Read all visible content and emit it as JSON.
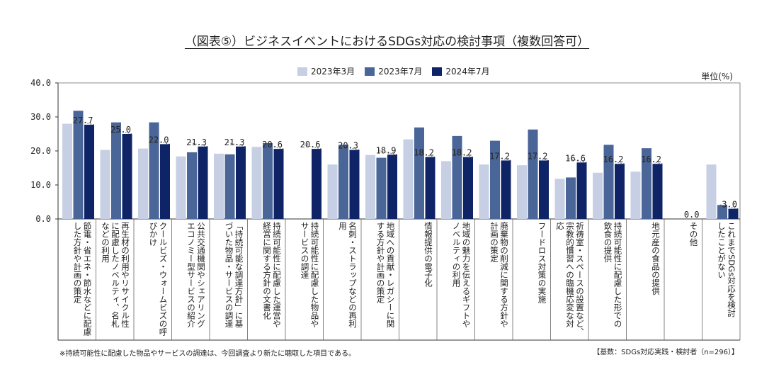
{
  "header": {
    "title": "（図表⑤）ビジネスイベントにおけるSDGs対応の検討事項（複数回答可）",
    "unit": "単位(%)"
  },
  "colors": {
    "s2023_3": "#c7cfe4",
    "s2023_7": "#4a6597",
    "s2024_7": "#0f2467"
  },
  "chart_data": {
    "type": "bar",
    "title": "（図表⑤）ビジネスイベントにおけるSDGs対応の検討事項（複数回答可）",
    "ylabel": "単位(%)",
    "ylim": [
      0,
      40
    ],
    "yticks": [
      "0.0",
      "10.0",
      "20.0",
      "30.0",
      "40.0"
    ],
    "grid": false,
    "legend": "top-center",
    "categories": [
      [
        "節電・省エネ・節水などに配慮",
        "した方針や計画の策定"
      ],
      [
        "再生材の利用やリサイクル性",
        "に配慮したノベルティ、名札",
        "などの利用"
      ],
      [
        "クールビズ・ウォームビズの呼",
        "びかけ"
      ],
      [
        "公共交通機関やシェアリング",
        "エコノミー型サービスの紹介"
      ],
      [
        "「持続可能な調達方針」に基",
        "づいた物品・サービスの調達"
      ],
      [
        "持続可能性に配慮した運営や",
        "経営に関する方針の文書化"
      ],
      [
        "持続可能性に配慮した物品や",
        "サービスの調達"
      ],
      [
        "名刺・ストラップなどの再利",
        "用"
      ],
      [
        "地域への貢献・レガシーに関",
        "する方針や計画の策定"
      ],
      [
        "情報提供の電子化"
      ],
      [
        "地域の魅力を伝えるギフトや",
        "ノベルティの利用"
      ],
      [
        "廃棄物の削減に関する方針や",
        "計画の策定"
      ],
      [
        "フードロス対策の実施"
      ],
      [
        "祈祷室・スペースの設置など、",
        "宗教的慣習への臨機応変な対",
        "応"
      ],
      [
        "持続可能性に配慮した形での",
        "飲食の提供"
      ],
      [
        "地元産の食品の提供"
      ],
      [
        "その他"
      ],
      [
        "これまでSDGs対応を検討",
        "したことがない"
      ]
    ],
    "series": [
      {
        "name": "2023年3月",
        "values": [
          28,
          20.3,
          20.7,
          18.4,
          19.2,
          21.2,
          null,
          16,
          18.8,
          23.4,
          17,
          16,
          15.8,
          11.8,
          13.6,
          13.9,
          0,
          16
        ]
      },
      {
        "name": "2023年7月",
        "values": [
          31.8,
          28.4,
          28.4,
          19.6,
          19,
          22.3,
          null,
          21.8,
          18,
          26.9,
          24.4,
          23,
          26.3,
          12.2,
          21.8,
          20.8,
          0,
          4.1
        ]
      },
      {
        "name": "2024年7月",
        "values": [
          27.7,
          25.0,
          22.0,
          21.3,
          21.3,
          20.6,
          20.6,
          20.3,
          18.9,
          18.2,
          18.2,
          17.2,
          17.2,
          16.6,
          16.2,
          16.2,
          0.0,
          3.0
        ]
      }
    ],
    "data_labels": [
      "27.7",
      "25.0",
      "22.0",
      "21.3",
      "21.3",
      "20.6",
      "20.6",
      "20.3",
      "18.9",
      "18.2",
      "18.2",
      "17.2",
      "17.2",
      "16.6",
      "16.2",
      "16.2",
      "0.0",
      "3.0"
    ]
  },
  "footer": {
    "footnote": "※持続可能性に配慮した物品やサービスの調達は、今回調査より新たに聴取した項目である。",
    "basis": "【基数：SDGs対応実践・検討者（n=296）】"
  }
}
